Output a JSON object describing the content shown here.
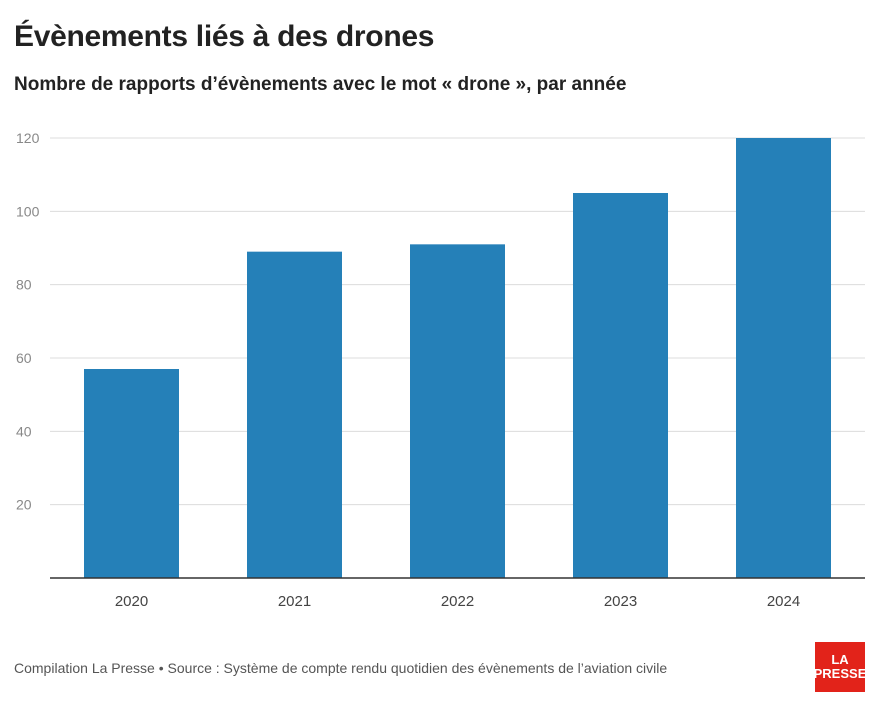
{
  "header": {
    "title": "Évènements liés à des drones",
    "subtitle": "Nombre de rapports d’évènements avec le mot « drone », par année"
  },
  "footer": {
    "source": "Compilation La Presse • Source : Système de compte rendu quotidien des évènements de l’aviation civile"
  },
  "logo": {
    "line1": "LA",
    "line2": "PRESSE",
    "color": "#e2231a"
  },
  "chart_data": {
    "type": "bar",
    "title": "Évènements liés à des drones",
    "subtitle": "Nombre de rapports d’évènements avec le mot « drone », par année",
    "categories": [
      "2020",
      "2021",
      "2022",
      "2023",
      "2024"
    ],
    "values": [
      57,
      89,
      91,
      105,
      120
    ],
    "ylim": [
      0,
      120
    ],
    "yticks": [
      20,
      40,
      60,
      80,
      100,
      120
    ],
    "grid": true,
    "bar_color": "#2580b8",
    "xlabel": "",
    "ylabel": ""
  }
}
